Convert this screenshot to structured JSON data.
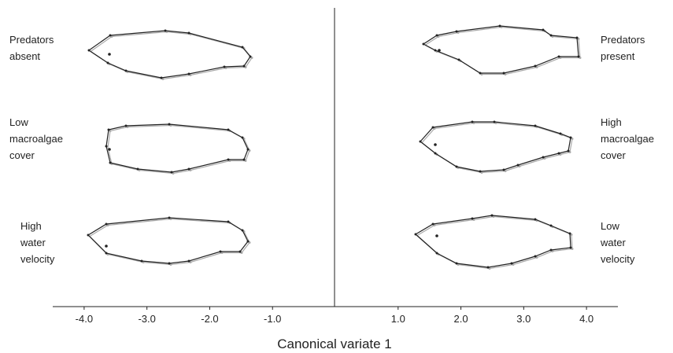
{
  "chart_data": {
    "type": "shape-panels",
    "x_label": "Canonical variate 1",
    "xlim": [
      -4.5,
      4.5
    ],
    "xticks": [
      {
        "value": -4,
        "label": "-4.0"
      },
      {
        "value": -3,
        "label": "-3.0"
      },
      {
        "value": -2,
        "label": "-2.0"
      },
      {
        "value": -1,
        "label": "-1.0"
      },
      {
        "value": 1,
        "label": "1.0"
      },
      {
        "value": 2,
        "label": "2.0"
      },
      {
        "value": 3,
        "label": "3.0"
      },
      {
        "value": 4,
        "label": "4.0"
      }
    ],
    "panels": [
      {
        "lines": [
          "Predators",
          "absent"
        ]
      },
      {
        "lines": [
          "Predators",
          "present"
        ]
      },
      {
        "lines": [
          "Low",
          "macroalgae",
          "cover"
        ]
      },
      {
        "lines": [
          "High",
          "macroalgae",
          "cover"
        ]
      },
      {
        "lines": [
          "High",
          "water",
          "velocity"
        ]
      },
      {
        "lines": [
          "Low",
          "water",
          "velocity"
        ]
      }
    ]
  }
}
